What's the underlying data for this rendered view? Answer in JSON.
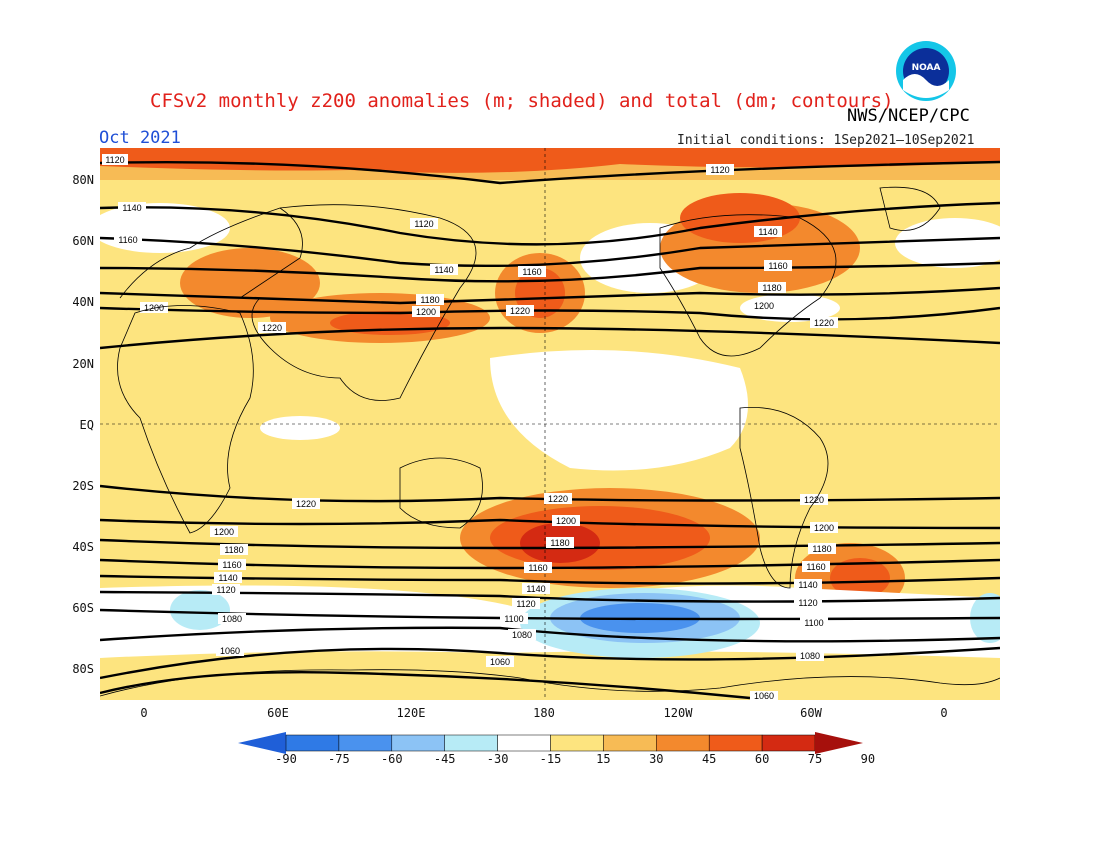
{
  "header": {
    "title": "CFSv2 monthly z200 anomalies (m; shaded) and total (dm; contours)",
    "agency": "NWS/NCEP/CPC",
    "month": "Oct 2021",
    "initial_conditions": "Initial conditions: 1Sep2021–10Sep2021",
    "logo_text": "NOAA"
  },
  "axes": {
    "lat_labels": [
      "80N",
      "60N",
      "40N",
      "20N",
      "EQ",
      "20S",
      "40S",
      "60S",
      "80S"
    ],
    "lon_labels": [
      "0",
      "60E",
      "120E",
      "180",
      "120W",
      "60W",
      "0"
    ]
  },
  "contour_labels": [
    "1120",
    "1140",
    "1160",
    "1180",
    "1200",
    "1220",
    "1100",
    "1080",
    "1060"
  ],
  "colorbar": {
    "ticks": [
      "-90",
      "-75",
      "-60",
      "-45",
      "-30",
      "-15",
      "15",
      "30",
      "45",
      "60",
      "75",
      "90"
    ],
    "colors": [
      "#1f5fd8",
      "#2f7ae6",
      "#4a92ee",
      "#8cc3f5",
      "#b7ebf6",
      "#ffffff",
      "#fde47f",
      "#f7bb55",
      "#f3892d",
      "#ef5b1a",
      "#d42a12",
      "#a6100c"
    ]
  },
  "colors": {
    "title": "#e1211b",
    "date": "#1f4fd6",
    "background_anomaly": "#fde47f"
  }
}
